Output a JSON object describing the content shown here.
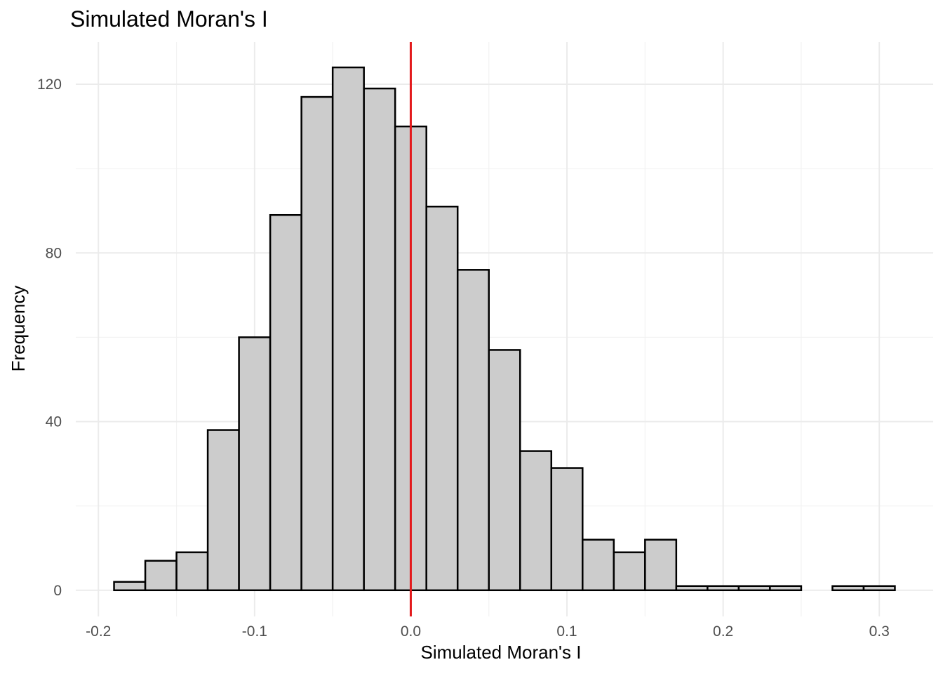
{
  "chart_data": {
    "type": "bar",
    "title": "Simulated Moran's I",
    "xlabel": "Simulated Moran's I",
    "ylabel": "Frequency",
    "xlim": [
      -0.2145,
      0.3345
    ],
    "ylim": [
      -6.2,
      130
    ],
    "x_ticks": [
      -0.2,
      -0.1,
      0.0,
      0.1,
      0.2,
      0.3
    ],
    "x_tick_labels": [
      "-0.2",
      "-0.1",
      "0.0",
      "0.1",
      "0.2",
      "0.3"
    ],
    "y_ticks": [
      0,
      40,
      80,
      120
    ],
    "y_tick_labels": [
      "0",
      "40",
      "80",
      "120"
    ],
    "bin_width": 0.02,
    "bin_start": [
      -0.19,
      -0.17,
      -0.15,
      -0.13,
      -0.11,
      -0.09,
      -0.07,
      -0.05,
      -0.03,
      -0.01,
      0.01,
      0.03,
      0.05,
      0.07,
      0.09,
      0.11,
      0.13,
      0.15,
      0.17,
      0.19,
      0.21,
      0.23,
      0.25,
      0.27,
      0.29
    ],
    "values": [
      2,
      7,
      9,
      38,
      60,
      89,
      117,
      124,
      119,
      110,
      91,
      76,
      57,
      33,
      29,
      12,
      9,
      12,
      1,
      1,
      1,
      1,
      0,
      1,
      1
    ],
    "bar_fill": "#cccccc",
    "bar_outline": "#000000",
    "vline": {
      "x": 0.0,
      "color": "#e31a1c"
    },
    "grid": true,
    "legend": "none"
  }
}
